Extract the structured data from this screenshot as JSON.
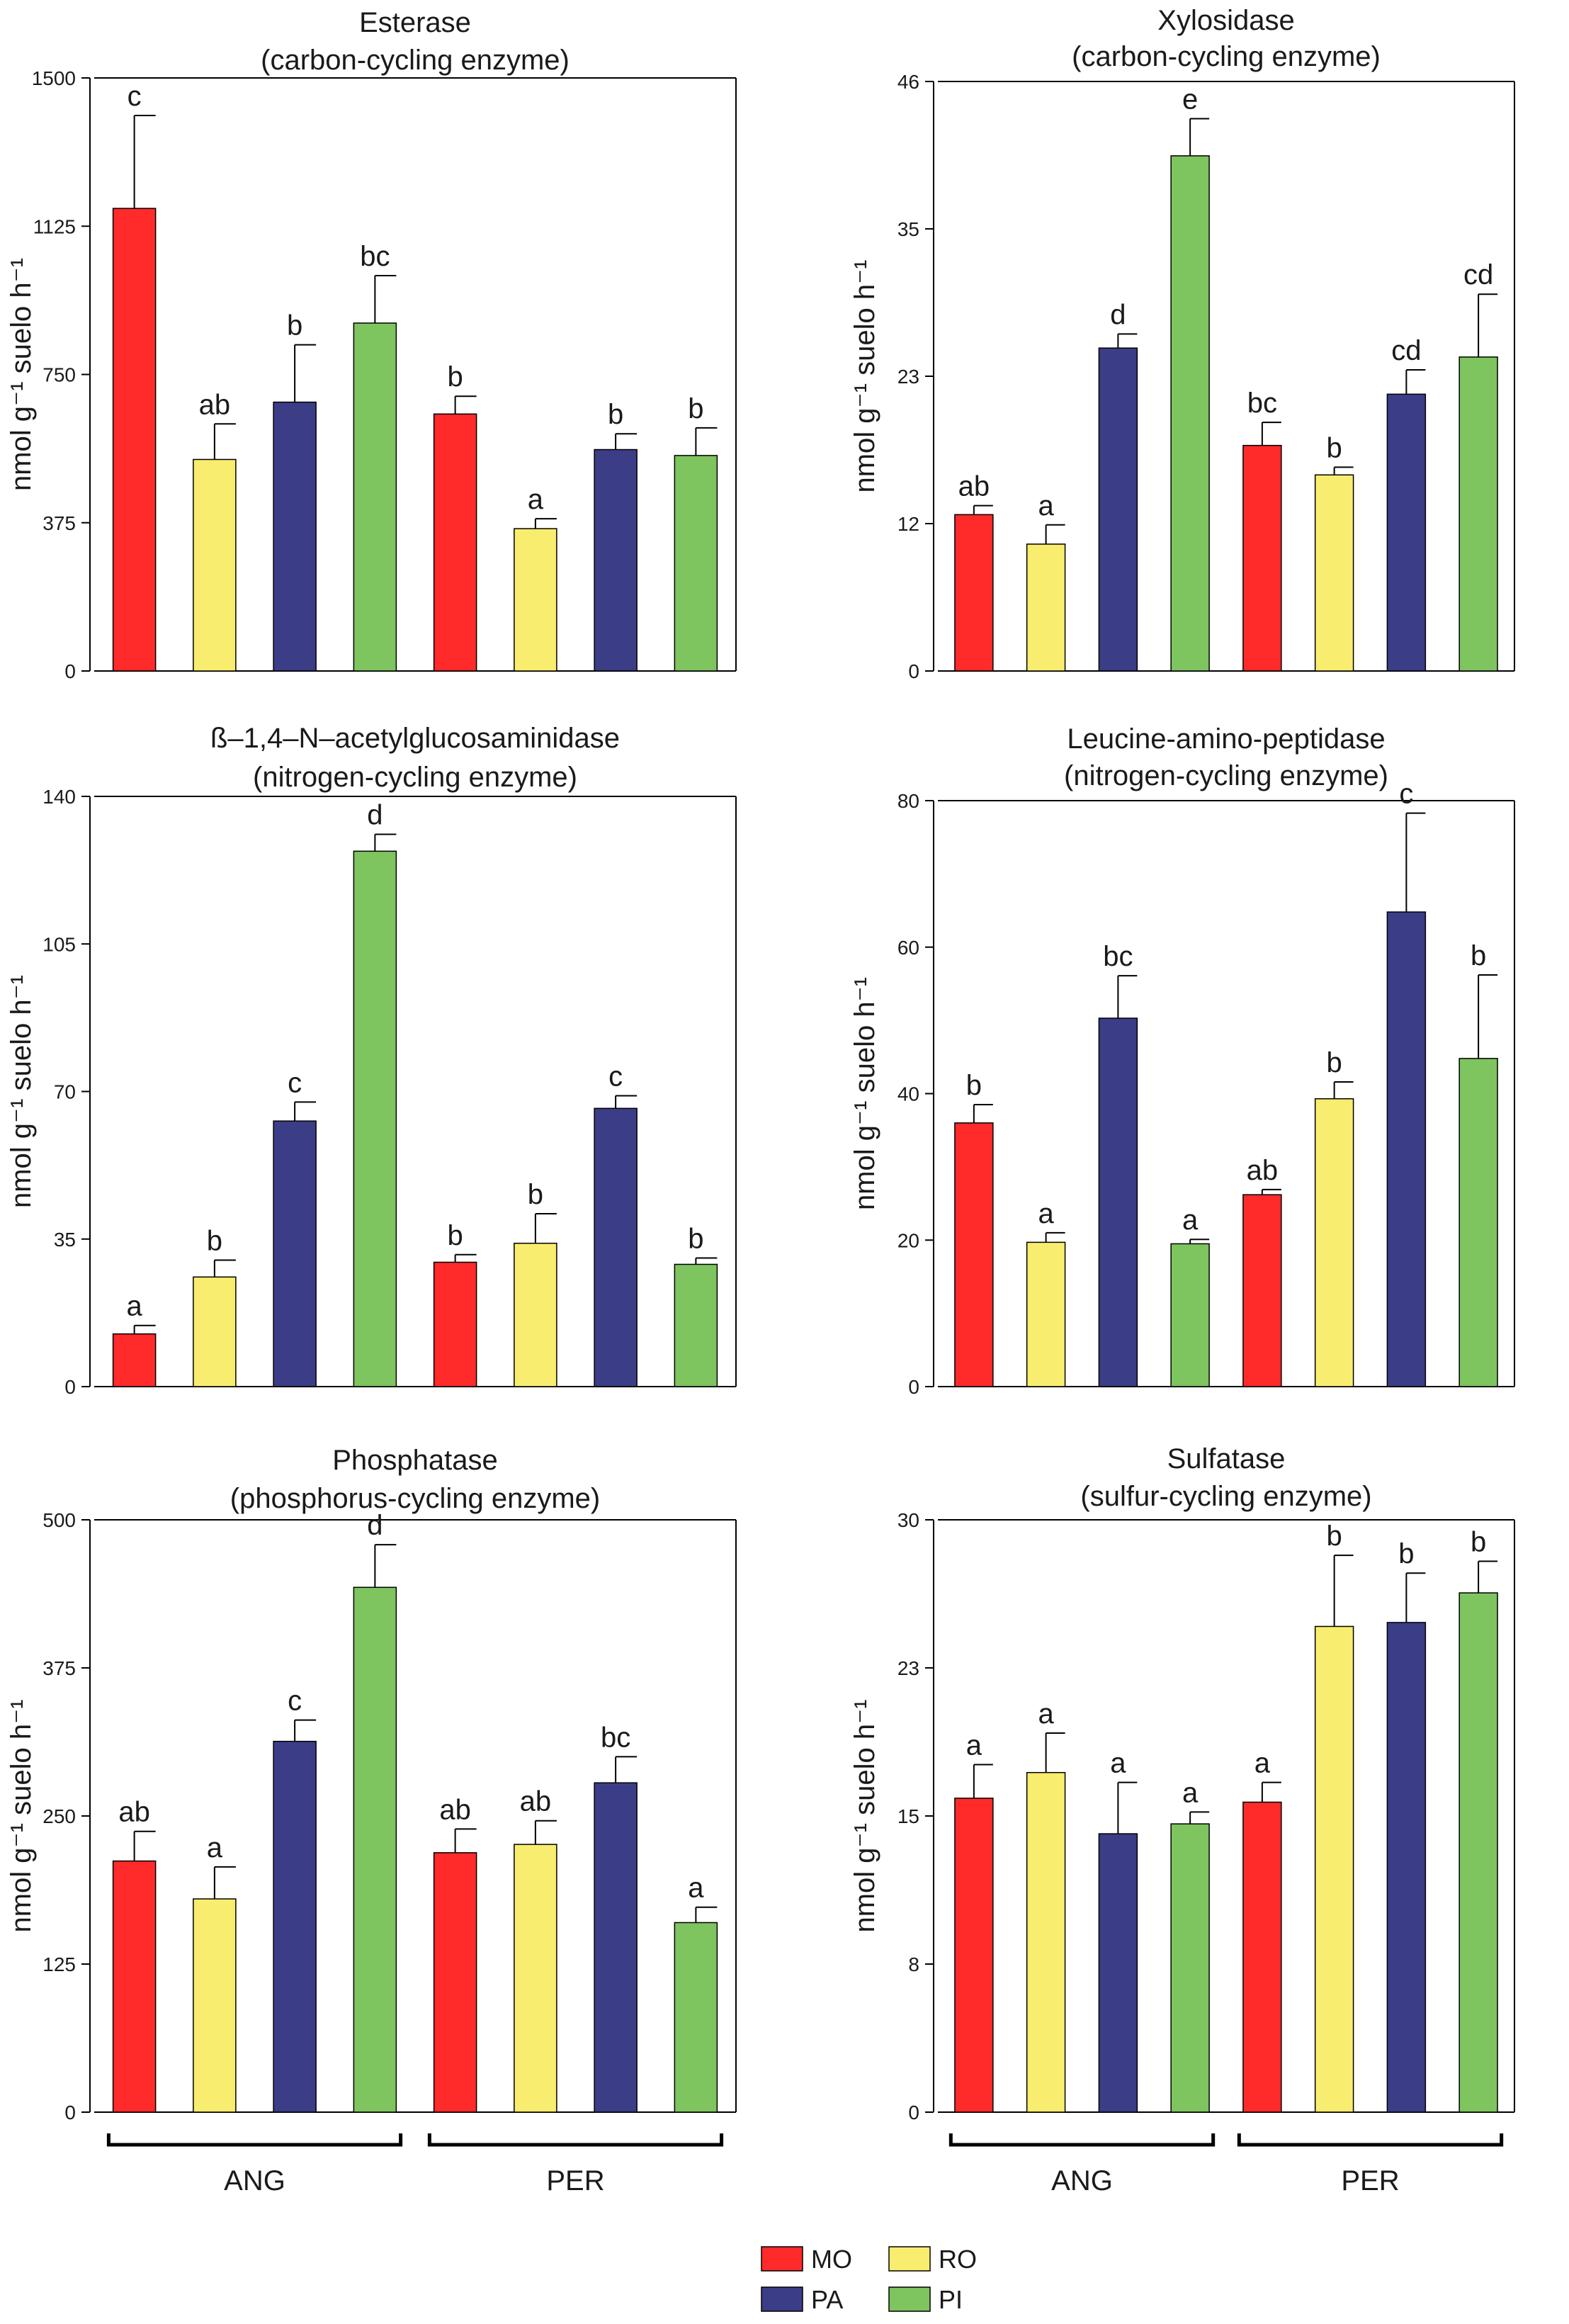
{
  "colors": {
    "MO": "#ff2a2a",
    "RO": "#f8ed6e",
    "PA": "#3c3d87",
    "PI": "#7ec45f"
  },
  "groups": [
    {
      "label": "ANG",
      "series": [
        "MO",
        "RO",
        "PA",
        "PI"
      ]
    },
    {
      "label": "PER",
      "series": [
        "MO",
        "RO",
        "PA",
        "PI"
      ]
    }
  ],
  "legend": [
    {
      "key": "MO",
      "label": "MO"
    },
    {
      "key": "RO",
      "label": "RO"
    },
    {
      "key": "PA",
      "label": "PA"
    },
    {
      "key": "PI",
      "label": "PI"
    }
  ],
  "chart_data": [
    {
      "type": "bar",
      "title": "Esterase",
      "subtitle": "(carbon-cycling enzyme)",
      "ylabel": "nmol g⁻¹ suelo h⁻¹",
      "ylim": [
        0,
        1500
      ],
      "yticks": [
        "0",
        "375",
        "750",
        "1125",
        "1500"
      ],
      "categories": [
        "ANG-MO",
        "ANG-RO",
        "ANG-PA",
        "ANG-PI",
        "PER-MO",
        "PER-RO",
        "PER-PA",
        "PER-PI"
      ],
      "values": [
        1170,
        535,
        680,
        880,
        650,
        360,
        560,
        545
      ],
      "errors": [
        235,
        90,
        145,
        120,
        45,
        25,
        40,
        70
      ],
      "letters": [
        "c",
        "ab",
        "b",
        "bc",
        "b",
        "a",
        "b",
        "b"
      ]
    },
    {
      "type": "bar",
      "title": "Xylosidase",
      "subtitle": "(carbon-cycling enzyme)",
      "ylabel": "nmol g⁻¹ suelo h⁻¹",
      "ylim": [
        0,
        46
      ],
      "yticks": [
        "0",
        "12",
        "23",
        "35",
        "46"
      ],
      "categories": [
        "ANG-MO",
        "ANG-RO",
        "ANG-PA",
        "ANG-PI",
        "PER-MO",
        "PER-RO",
        "PER-PA",
        "PER-PI"
      ],
      "values": [
        12.2,
        9.9,
        25.2,
        40.2,
        17.6,
        15.3,
        21.6,
        24.5
      ],
      "errors": [
        0.7,
        1.5,
        1.1,
        2.9,
        1.8,
        0.6,
        1.9,
        4.9
      ],
      "letters": [
        "ab",
        "a",
        "d",
        "e",
        "bc",
        "b",
        "cd",
        "cd"
      ]
    },
    {
      "type": "bar",
      "title": "ß–1,4–N–acetylglucosaminidase",
      "subtitle": "(nitrogen-cycling enzyme)",
      "ylabel": "nmol g⁻¹ suelo h⁻¹",
      "ylim": [
        0,
        140
      ],
      "yticks": [
        "0",
        "35",
        "70",
        "105",
        "140"
      ],
      "categories": [
        "ANG-MO",
        "ANG-RO",
        "ANG-PA",
        "ANG-PI",
        "PER-MO",
        "PER-RO",
        "PER-PA",
        "PER-PI"
      ],
      "values": [
        12.5,
        26,
        63,
        127,
        29.5,
        34,
        66,
        29
      ],
      "errors": [
        2.0,
        4.0,
        4.5,
        4.0,
        1.8,
        7.0,
        3.0,
        1.5
      ],
      "letters": [
        "a",
        "b",
        "c",
        "d",
        "b",
        "b",
        "c",
        "b"
      ]
    },
    {
      "type": "bar",
      "title": "Leucine-amino-peptidase",
      "subtitle": "(nitrogen-cycling enzyme)",
      "ylabel": "nmol g⁻¹ suelo h⁻¹",
      "ylim": [
        0,
        80
      ],
      "yticks": [
        "0",
        "20",
        "40",
        "60",
        "80"
      ],
      "categories": [
        "ANG-MO",
        "ANG-RO",
        "ANG-PA",
        "ANG-PI",
        "PER-MO",
        "PER-RO",
        "PER-PA",
        "PER-PI"
      ],
      "values": [
        36,
        19.7,
        50.3,
        19.5,
        26.2,
        39.3,
        64.8,
        44.8
      ],
      "errors": [
        2.5,
        1.3,
        5.8,
        0.6,
        0.7,
        2.3,
        13.5,
        11.4
      ],
      "letters": [
        "b",
        "a",
        "bc",
        "a",
        "ab",
        "b",
        "c",
        "b"
      ]
    },
    {
      "type": "bar",
      "title": "Phosphatase",
      "subtitle": "(phosphorus-cycling enzyme)",
      "ylabel": "nmol g⁻¹ suelo h⁻¹",
      "ylim": [
        0,
        500
      ],
      "yticks": [
        "0",
        "125",
        "250",
        "375",
        "500"
      ],
      "categories": [
        "ANG-MO",
        "ANG-RO",
        "ANG-PA",
        "ANG-PI",
        "PER-MO",
        "PER-RO",
        "PER-PA",
        "PER-PI"
      ],
      "values": [
        212,
        180,
        313,
        443,
        219,
        226,
        278,
        160
      ],
      "errors": [
        25,
        27,
        18,
        36,
        20,
        20,
        22,
        13
      ],
      "letters": [
        "ab",
        "a",
        "c",
        "d",
        "ab",
        "ab",
        "bc",
        "a"
      ]
    },
    {
      "type": "bar",
      "title": "Sulfatase",
      "subtitle": "(sulfur-cycling enzyme)",
      "ylabel": "nmol g⁻¹ suelo h⁻¹",
      "ylim": [
        0,
        30
      ],
      "yticks": [
        "0",
        "8",
        "15",
        "23",
        "30"
      ],
      "categories": [
        "ANG-MO",
        "ANG-RO",
        "ANG-PA",
        "ANG-PI",
        "PER-MO",
        "PER-RO",
        "PER-PA",
        "PER-PI"
      ],
      "values": [
        15.9,
        17.2,
        14.1,
        14.6,
        15.7,
        24.6,
        24.8,
        26.3
      ],
      "errors": [
        1.7,
        2.0,
        2.6,
        0.6,
        1.0,
        3.6,
        2.5,
        1.6
      ],
      "letters": [
        "a",
        "a",
        "a",
        "a",
        "a",
        "b",
        "b",
        "b"
      ]
    }
  ]
}
